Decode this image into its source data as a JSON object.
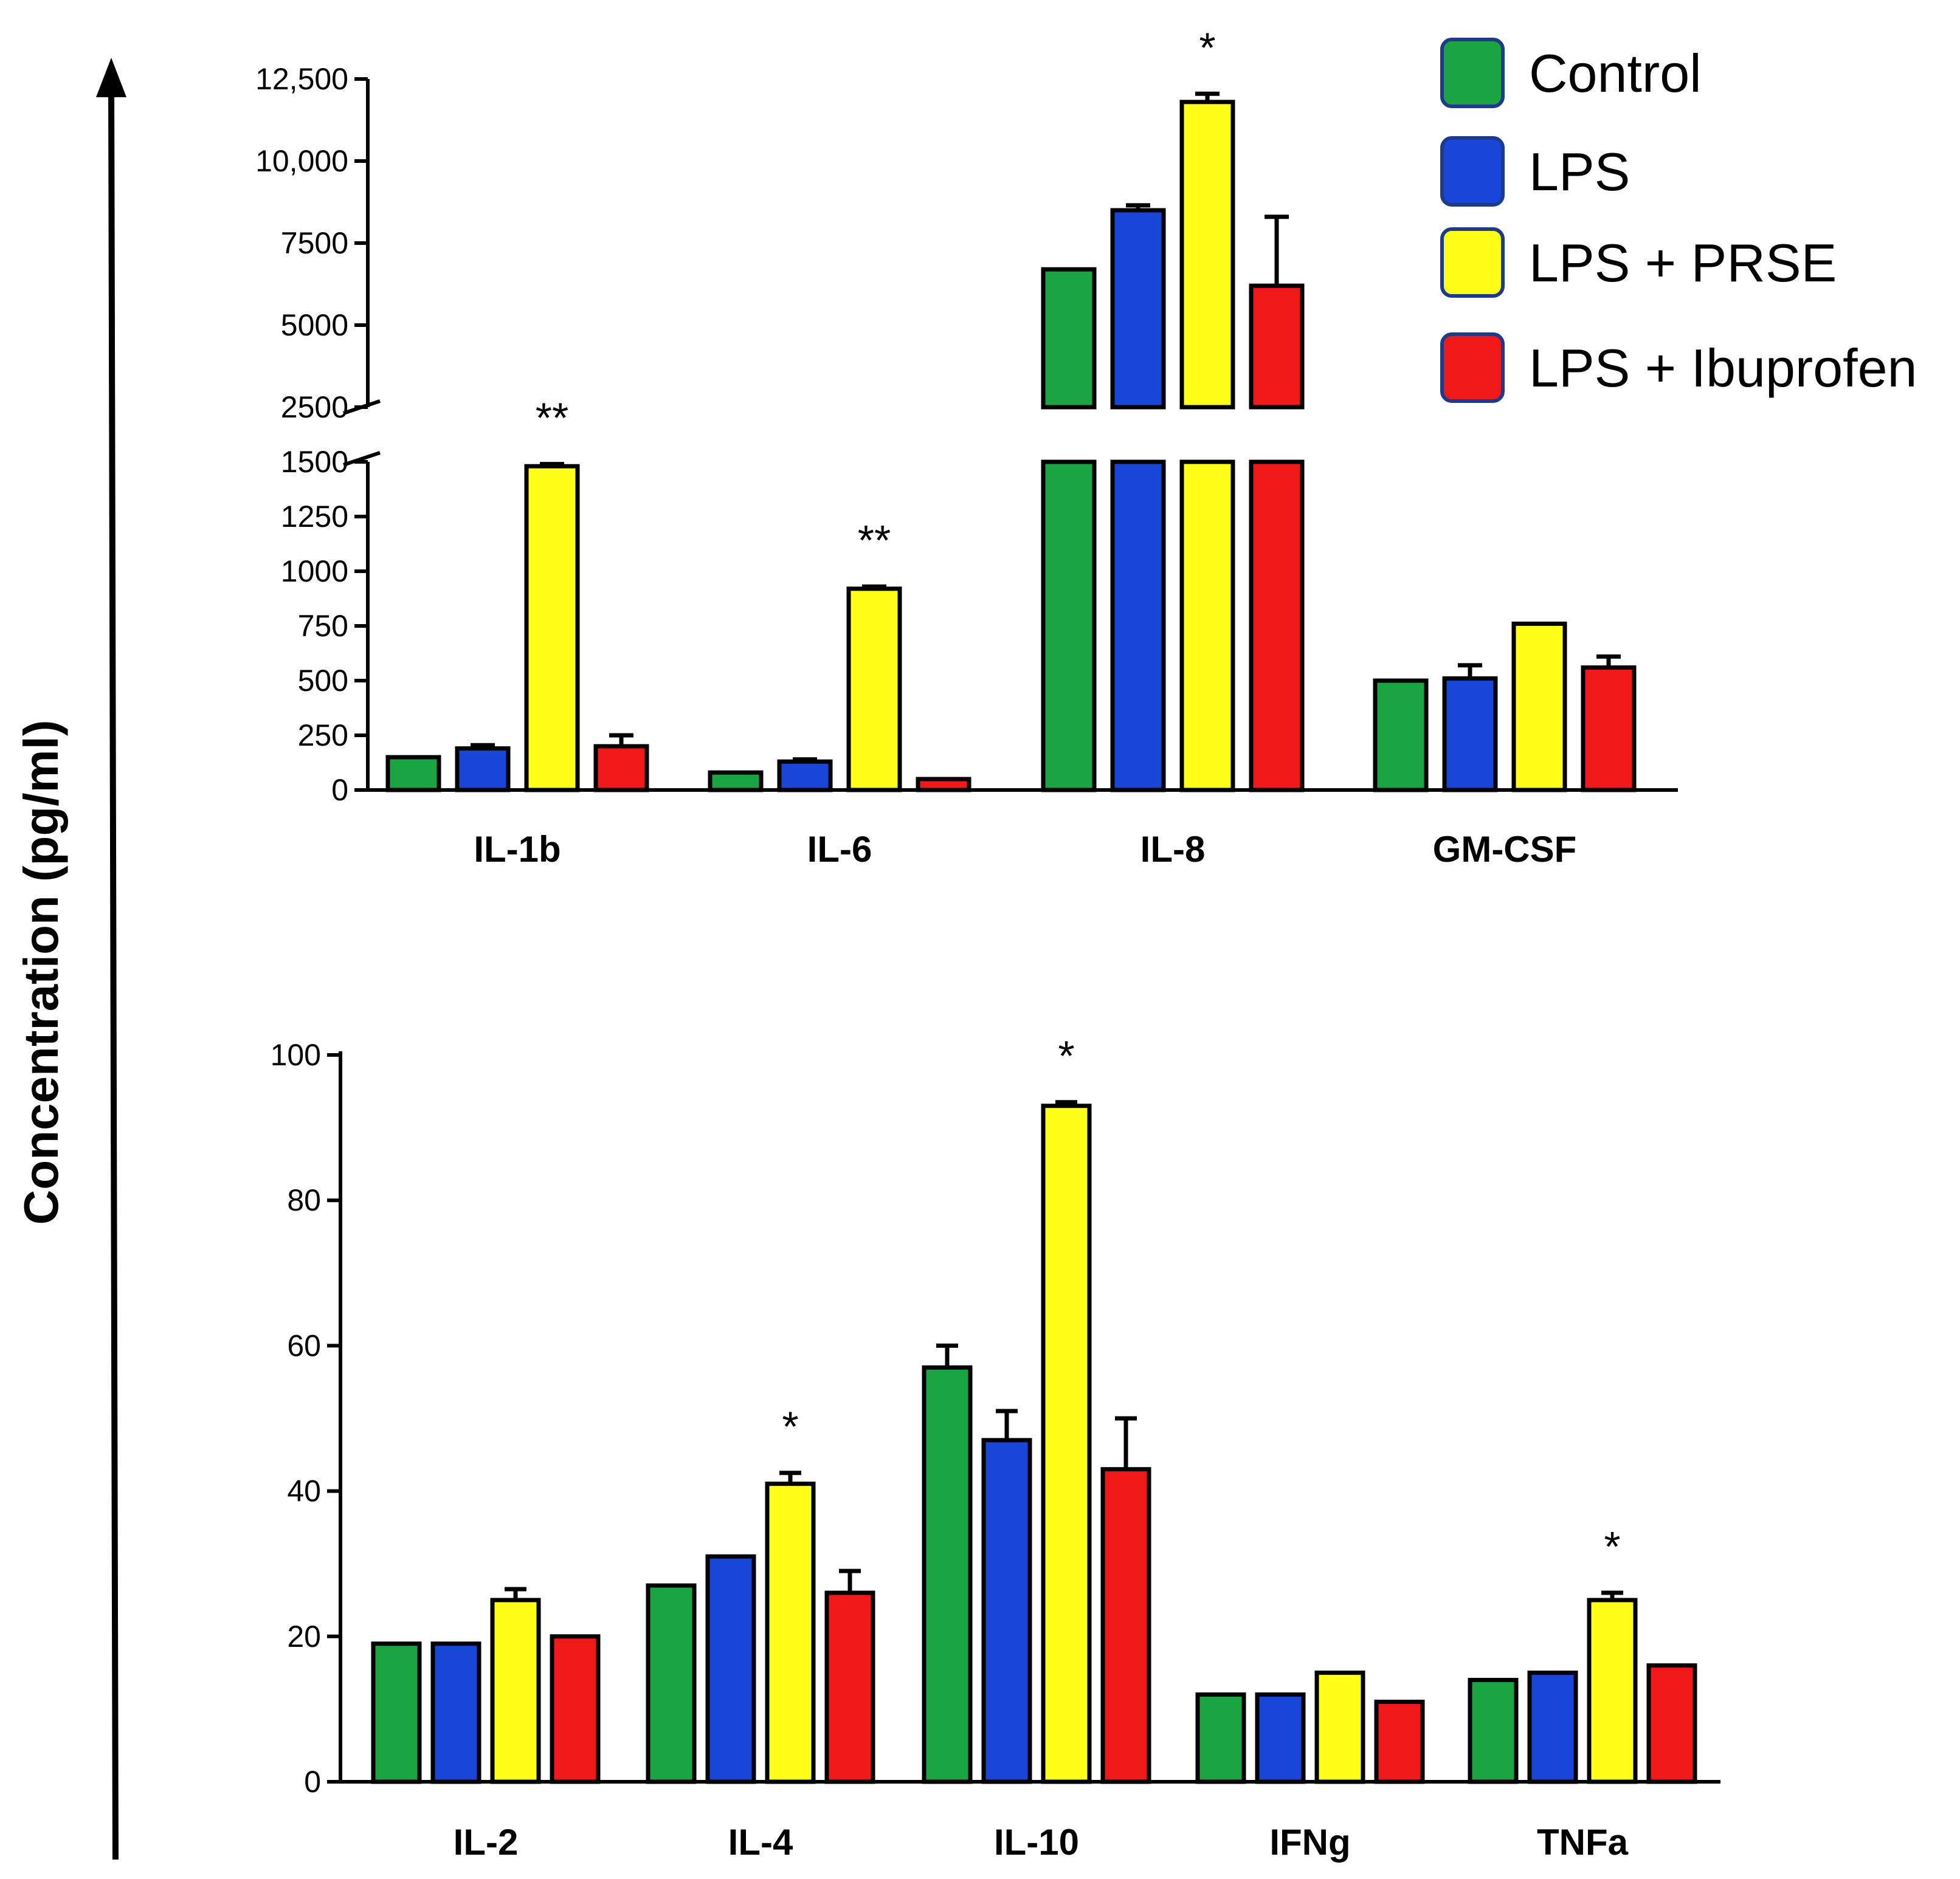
{
  "series_colors": [
    "#1aa542",
    "#1746d8",
    "#ffff1a",
    "#f01818"
  ],
  "chart_data": {
    "type": "bar",
    "ylabel": "Concentration (pg/ml)",
    "legend": {
      "position": "top-right",
      "entries": [
        "Control",
        "LPS",
        "LPS + PRSE",
        "LPS + Ibuprofen"
      ]
    },
    "panels": [
      {
        "id": "top",
        "categories": [
          "IL-1b",
          "IL-6",
          "IL-8",
          "GM-CSF"
        ],
        "series": [
          {
            "name": "Control",
            "values": [
              150,
              80,
              6700,
              500
            ],
            "errors": [
              0,
              0,
              0,
              0
            ]
          },
          {
            "name": "LPS",
            "values": [
              190,
              130,
              8500,
              510
            ],
            "errors": [
              15,
              10,
              150,
              60
            ]
          },
          {
            "name": "LPS + PRSE",
            "values": [
              1480,
              920,
              11800,
              760
            ],
            "errors": [
              10,
              10,
              250,
              0
            ]
          },
          {
            "name": "LPS + Ibuprofen",
            "values": [
              200,
              50,
              6200,
              560
            ],
            "errors": [
              50,
              0,
              2100,
              50
            ]
          }
        ],
        "significance": [
          "**",
          "**",
          "*",
          ""
        ],
        "axis_break": {
          "lower_max": 1500,
          "upper_min": 2500
        },
        "lower_ticks": [
          0,
          250,
          500,
          750,
          1000,
          1250,
          1500
        ],
        "lower_tick_labels": [
          "0",
          "250",
          "500",
          "750",
          "1000",
          "1250",
          "1500"
        ],
        "upper_ticks": [
          2500,
          5000,
          7500,
          10000,
          12500
        ],
        "upper_tick_labels": [
          "2500",
          "5000",
          "7500",
          "10,000",
          "12,500"
        ],
        "ylim": [
          0,
          12500
        ]
      },
      {
        "id": "bottom",
        "categories": [
          "IL-2",
          "IL-4",
          "IL-10",
          "IFNg",
          "TNFa"
        ],
        "series": [
          {
            "name": "Control",
            "values": [
              19,
              27,
              57,
              12,
              14
            ],
            "errors": [
              0,
              0,
              3,
              0,
              0
            ]
          },
          {
            "name": "LPS",
            "values": [
              19,
              31,
              47,
              12,
              15
            ],
            "errors": [
              0,
              0,
              4,
              0,
              0
            ]
          },
          {
            "name": "LPS + PRSE",
            "values": [
              25,
              41,
              93,
              15,
              25
            ],
            "errors": [
              1.5,
              1.5,
              0.5,
              0,
              1
            ]
          },
          {
            "name": "LPS + Ibuprofen",
            "values": [
              20,
              26,
              43,
              11,
              16
            ],
            "errors": [
              0,
              3,
              7,
              0,
              0
            ]
          }
        ],
        "significance": [
          "",
          "*",
          "*",
          "",
          "*"
        ],
        "ticks": [
          0,
          20,
          40,
          60,
          80,
          100
        ],
        "tick_labels": [
          "0",
          "20",
          "40",
          "60",
          "80",
          "100"
        ],
        "ylim": [
          0,
          100
        ]
      }
    ]
  }
}
